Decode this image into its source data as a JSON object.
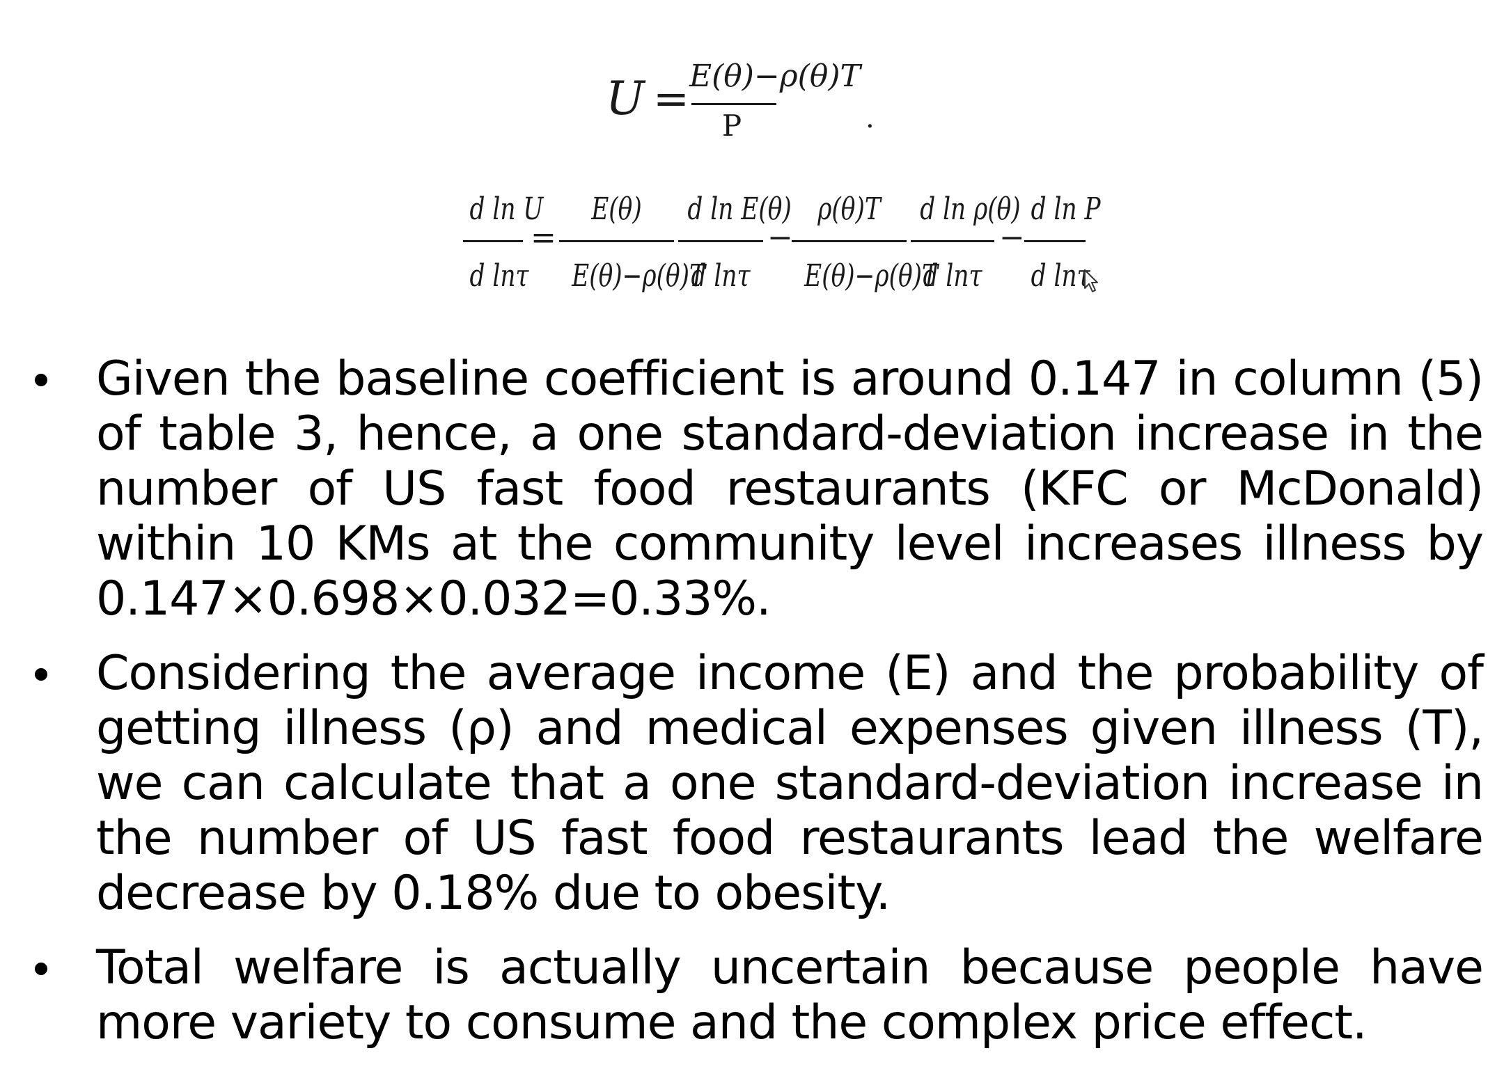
{
  "equations": {
    "eq1": {
      "lhs": "U",
      "equals": "=",
      "numerator": "E(θ)−ρ(θ)T",
      "denominator": "P",
      "trailing": "."
    },
    "eq2": {
      "lhs_num": "d ln U",
      "lhs_den": "d lnτ",
      "equals": "=",
      "t1_num": "E(θ)",
      "t1_den": "E(θ)−ρ(θ)T",
      "t2_num": "d ln E(θ)",
      "t2_den": "d lnτ",
      "minus1": "−",
      "t3_num": "ρ(θ)T",
      "t3_den": "E(θ)−ρ(θ)T",
      "t4_num": "d ln ρ(θ)",
      "t4_den": "d lnτ",
      "minus2": "−",
      "t5_num": "d ln P",
      "t5_den": "d lnτ"
    }
  },
  "bullets": [
    "Given the baseline coefficient is around 0.147 in column (5) of table 3, hence, a one standard-deviation increase in the number of US fast food restaurants (KFC or McDonald) within 10 KMs at the community level increases illness by 0.147×0.698×0.032=0.33%.",
    "Considering the average income (E) and the probability of getting illness (ρ) and medical expenses given illness (T), we can calculate that a one standard-deviation increase in the number of US fast food restaurants lead the welfare decrease by 0.18% due to obesity.",
    "Total welfare is actually uncertain because people have more variety to consume and the complex price effect."
  ],
  "colors": {
    "background": "#ffffff",
    "text": "#000000"
  }
}
